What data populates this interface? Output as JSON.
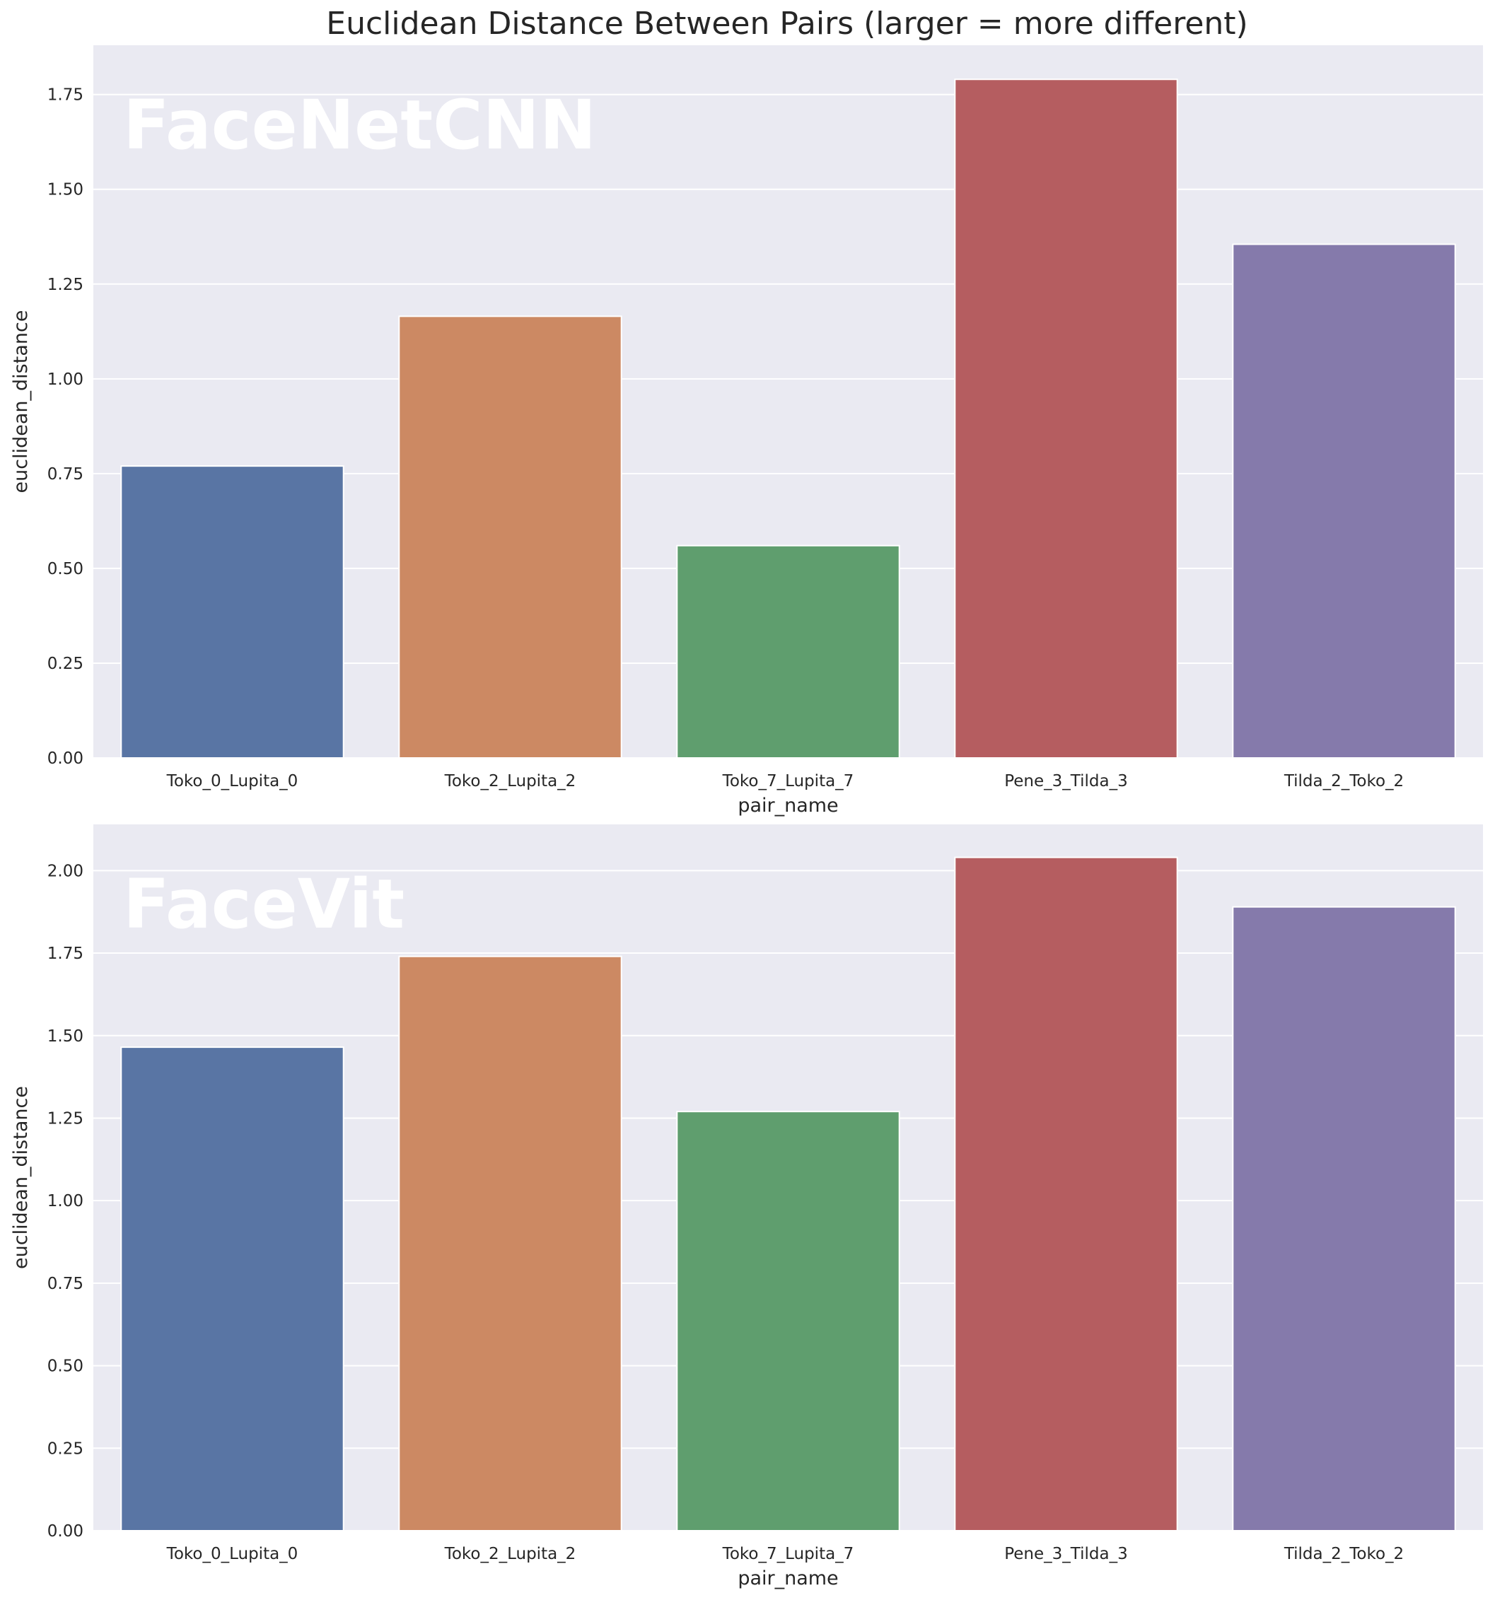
{
  "figure": {
    "title": "Euclidean Distance Between Pairs (larger = more different)"
  },
  "colors": {
    "panel_bg": "#EAEAF2",
    "grid": "#FFFFFF",
    "bar_colors": [
      "#5975A4",
      "#CC8963",
      "#5F9E6E",
      "#B55D60",
      "#857AAB"
    ]
  },
  "chart_data": [
    {
      "type": "bar",
      "watermark": "FaceNetCNN",
      "categories": [
        "Toko_0_Lupita_0",
        "Toko_2_Lupita_2",
        "Toko_7_Lupita_7",
        "Pene_3_Tilda_3",
        "Tilda_2_Toko_2"
      ],
      "values": [
        0.77,
        1.165,
        0.56,
        1.79,
        1.355
      ],
      "xlabel": "pair_name",
      "ylabel": "euclidean_distance",
      "ylim": [
        0,
        1.88
      ],
      "yticks": [
        0.0,
        0.25,
        0.5,
        0.75,
        1.0,
        1.25,
        1.5,
        1.75
      ],
      "ytick_labels": [
        "0.00",
        "0.25",
        "0.50",
        "0.75",
        "1.00",
        "1.25",
        "1.50",
        "1.75"
      ],
      "grid": true
    },
    {
      "type": "bar",
      "watermark": "FaceVit",
      "categories": [
        "Toko_0_Lupita_0",
        "Toko_2_Lupita_2",
        "Toko_7_Lupita_7",
        "Pene_3_Tilda_3",
        "Tilda_2_Toko_2"
      ],
      "values": [
        1.465,
        1.74,
        1.27,
        2.04,
        1.89
      ],
      "xlabel": "pair_name",
      "ylabel": "euclidean_distance",
      "ylim": [
        0,
        2.14
      ],
      "yticks": [
        0.0,
        0.25,
        0.5,
        0.75,
        1.0,
        1.25,
        1.5,
        1.75,
        2.0
      ],
      "ytick_labels": [
        "0.00",
        "0.25",
        "0.50",
        "0.75",
        "1.00",
        "1.25",
        "1.50",
        "1.75",
        "2.00"
      ],
      "grid": true
    }
  ]
}
